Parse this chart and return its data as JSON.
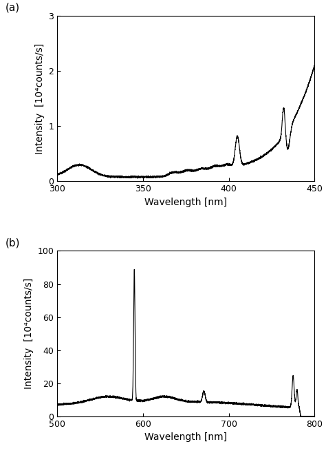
{
  "panel_a": {
    "xlabel": "Wavelength [nm]",
    "ylabel": "Intensity  [10⁴counts/s]",
    "xlim": [
      300,
      450
    ],
    "ylim": [
      0,
      3
    ],
    "yticks": [
      0,
      1,
      2,
      3
    ],
    "xticks": [
      300,
      350,
      400,
      450
    ],
    "label": "(a)"
  },
  "panel_b": {
    "xlabel": "Wavelength [nm]",
    "ylabel": "Intensity  [10⁴counts/s]",
    "xlim": [
      500,
      800
    ],
    "ylim": [
      0,
      100
    ],
    "yticks": [
      0,
      20,
      40,
      60,
      80,
      100
    ],
    "xticks": [
      500,
      600,
      700,
      800
    ],
    "label": "(b)"
  },
  "line_color": "#000000",
  "line_width": 0.8,
  "background_color": "#ffffff",
  "font_size_label": 10,
  "font_size_tick": 9,
  "font_size_panel": 11
}
